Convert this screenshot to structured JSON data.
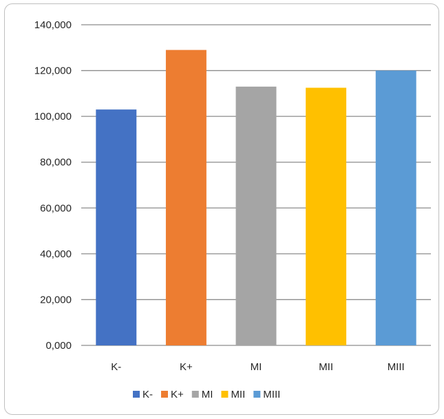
{
  "chart_data": {
    "type": "bar",
    "categories": [
      "K-",
      "K+",
      "MI",
      "MII",
      "MIII"
    ],
    "values": [
      103000,
      129000,
      113000,
      112500,
      120000
    ],
    "colors": [
      "#4472c4",
      "#ed7d31",
      "#a5a5a5",
      "#ffc000",
      "#5b9bd5"
    ],
    "ylim": [
      0,
      140000
    ],
    "yticks": [
      "0,000",
      "20,000",
      "40,000",
      "60,000",
      "80,000",
      "100,000",
      "120,000",
      "140,000"
    ],
    "grid": true,
    "legend": {
      "placement": "bottom",
      "entries": [
        "K-",
        "K+",
        "MI",
        "MII",
        "MIII"
      ]
    }
  }
}
